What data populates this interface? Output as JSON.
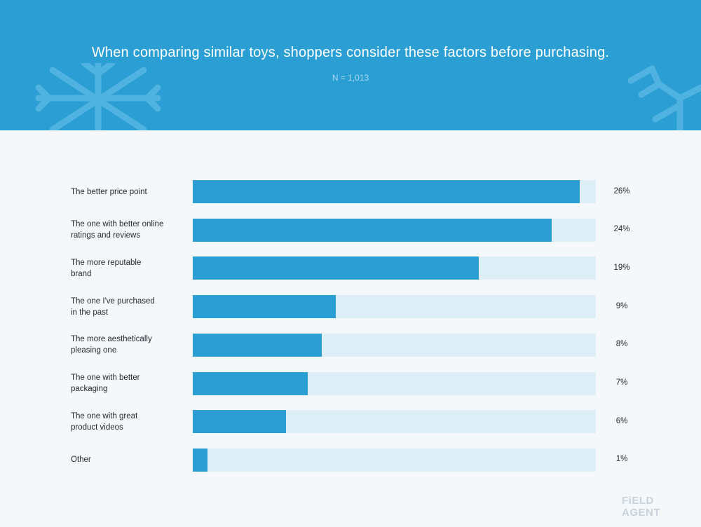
{
  "header": {
    "title": "When comparing similar toys, shoppers consider these factors before purchasing.",
    "subtitle": "N = 1,013"
  },
  "branding": {
    "logo_text": "FiELD AGENT"
  },
  "colors": {
    "header_bg": "#2b9fd4",
    "bar": "#2b9fd4",
    "track": "#ddeef7",
    "page_bg": "#f4f8fb"
  },
  "chart_data": {
    "type": "bar",
    "orientation": "horizontal",
    "title": "When comparing similar toys, shoppers consider these factors before purchasing.",
    "subtitle": "N = 1,013",
    "categories": [
      "The better price point",
      "The one with better online\nratings and reviews",
      "The more reputable\nbrand",
      "The one I've purchased\nin the past",
      "The more aesthetically\npleasing one",
      "The one with better\npackaging",
      "The one with great\nproduct videos",
      "Other"
    ],
    "values": [
      26,
      24,
      19,
      9,
      8,
      7,
      6,
      1
    ],
    "value_labels": [
      "26%",
      "24%",
      "19%",
      "9%",
      "8%",
      "7%",
      "6%",
      "1%"
    ],
    "fill_fractions": [
      0.96,
      0.89,
      0.71,
      0.355,
      0.32,
      0.285,
      0.232,
      0.036
    ],
    "grid": false,
    "legend": "none"
  }
}
